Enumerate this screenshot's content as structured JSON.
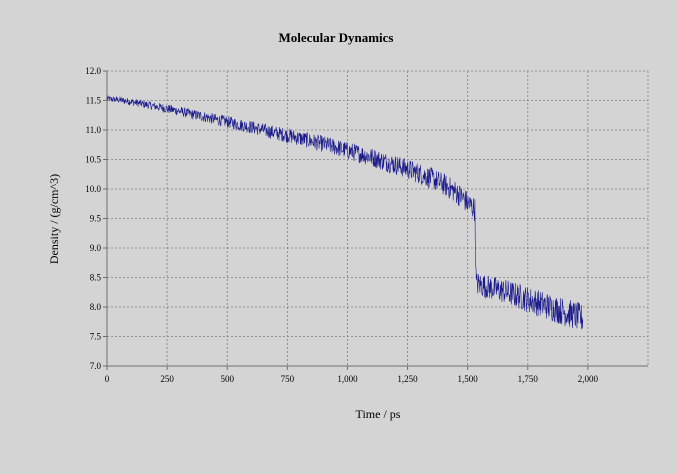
{
  "chart_data": {
    "type": "line",
    "title": "Molecular Dynamics",
    "xlabel": "Time / ps",
    "ylabel": "Density / (g/cm^3)",
    "xlim": [
      0,
      2250
    ],
    "ylim": [
      7.0,
      12.0
    ],
    "x_ticks": [
      0,
      250,
      500,
      750,
      1000,
      1250,
      1500,
      1750,
      2000
    ],
    "x_tick_labels": [
      "0",
      "250",
      "500",
      "750",
      "1,000",
      "1,250",
      "1,500",
      "1,750",
      "2,000"
    ],
    "y_ticks": [
      7.0,
      7.5,
      8.0,
      8.5,
      9.0,
      9.5,
      10.0,
      10.5,
      11.0,
      11.5,
      12.0
    ],
    "y_tick_labels": [
      "7.0",
      "7.5",
      "8.0",
      "8.5",
      "9.0",
      "9.5",
      "10.0",
      "10.5",
      "11.0",
      "11.5",
      "12.0"
    ],
    "grid": true,
    "line_color": "#1a1a8c",
    "series": [
      {
        "x": [
          0,
          50,
          100,
          150,
          200,
          250,
          300,
          350,
          400,
          450,
          500,
          550,
          600,
          650,
          700,
          750,
          800,
          850,
          900,
          950,
          1000,
          1050,
          1100,
          1150,
          1200,
          1250,
          1300,
          1350,
          1400,
          1450,
          1480,
          1500,
          1520,
          1530,
          1535,
          1550,
          1600,
          1650,
          1700,
          1750,
          1800,
          1850,
          1900,
          1950,
          1980
        ],
        "values": [
          11.53,
          11.51,
          11.48,
          11.44,
          11.4,
          11.36,
          11.32,
          11.27,
          11.23,
          11.18,
          11.14,
          11.09,
          11.05,
          11.0,
          10.95,
          10.91,
          10.86,
          10.81,
          10.76,
          10.71,
          10.65,
          10.6,
          10.54,
          10.47,
          10.41,
          10.34,
          10.26,
          10.18,
          10.08,
          9.95,
          9.85,
          9.76,
          9.7,
          9.65,
          8.4,
          8.38,
          8.32,
          8.27,
          8.2,
          8.13,
          8.06,
          7.99,
          7.92,
          7.85,
          7.8
        ],
        "noise_amplitude": 0.15
      }
    ]
  }
}
